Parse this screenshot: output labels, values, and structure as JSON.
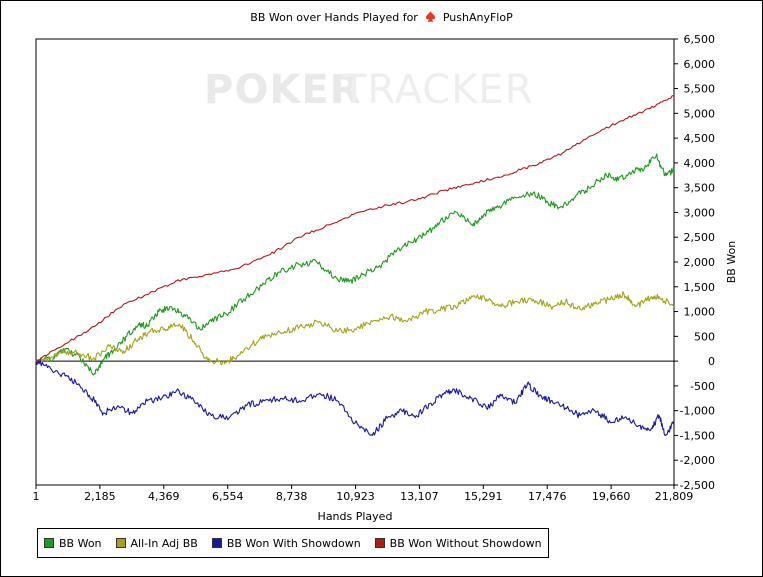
{
  "chart_data": {
    "type": "line",
    "title": "BB Won over Hands Played for PushAnyFloP",
    "title_prefix": "BB Won over Hands Played for",
    "player_name": "PushAnyFloP",
    "player_icon": "spade-icon",
    "watermark": {
      "bold": "POKER",
      "light": "TRACKER"
    },
    "xlabel": "Hands Played",
    "ylabel": "BB Won",
    "xlim": [
      1,
      21809
    ],
    "ylim": [
      -2500,
      6500
    ],
    "x_ticks": [
      1,
      2185,
      4369,
      6554,
      8738,
      10923,
      13107,
      15291,
      17476,
      19660,
      21809
    ],
    "x_tick_labels": [
      "1",
      "2,185",
      "4,369",
      "6,554",
      "8,738",
      "10,923",
      "13,107",
      "15,291",
      "17,476",
      "19,660",
      "21,809"
    ],
    "y_ticks": [
      -2500,
      -2000,
      -1500,
      -1000,
      -500,
      0,
      500,
      1000,
      1500,
      2000,
      2500,
      3000,
      3500,
      4000,
      4500,
      5000,
      5500,
      6000,
      6500
    ],
    "y_tick_labels": [
      "-2,500",
      "-2,000",
      "-1,500",
      "-1,000",
      "-500",
      "0",
      "500",
      "1,000",
      "1,500",
      "2,000",
      "2,500",
      "3,000",
      "3,500",
      "4,000",
      "4,500",
      "5,000",
      "5,500",
      "6,000",
      "6,500"
    ],
    "grid": false,
    "legend_position": "bottom-left",
    "series": [
      {
        "name": "BB Won",
        "color": "#1e9a1e",
        "x": [
          1,
          600,
          1000,
          1500,
          2000,
          2300,
          2700,
          3100,
          3500,
          3800,
          4200,
          4600,
          5100,
          5600,
          6000,
          6500,
          7200,
          7800,
          8300,
          9000,
          9600,
          10200,
          10700,
          11200,
          11700,
          12300,
          12800,
          13300,
          13800,
          14400,
          14900,
          15300,
          15800,
          16400,
          17000,
          17500,
          17900,
          18400,
          18900,
          19500,
          19900,
          20400,
          20800,
          21200,
          21500,
          21809
        ],
        "y": [
          0,
          60,
          250,
          80,
          -250,
          30,
          250,
          500,
          750,
          700,
          1000,
          1100,
          900,
          650,
          800,
          950,
          1300,
          1550,
          1800,
          1950,
          2000,
          1700,
          1600,
          1750,
          1900,
          2200,
          2400,
          2550,
          2800,
          3000,
          2750,
          2950,
          3100,
          3300,
          3400,
          3200,
          3100,
          3300,
          3500,
          3750,
          3650,
          3850,
          3900,
          4150,
          3750,
          3850
        ]
      },
      {
        "name": "All-In Adj BB",
        "color": "#a3a31a",
        "x": [
          1,
          500,
          1000,
          1500,
          2000,
          2500,
          3000,
          3500,
          3900,
          4400,
          4900,
          5400,
          5800,
          6300,
          6800,
          7400,
          7900,
          8500,
          9100,
          9700,
          10300,
          10900,
          11500,
          12100,
          12700,
          13300,
          13900,
          14500,
          15000,
          15400,
          15900,
          16400,
          17000,
          17600,
          18100,
          18600,
          19100,
          19600,
          20100,
          20500,
          20900,
          21300,
          21809
        ],
        "y": [
          0,
          50,
          200,
          150,
          50,
          300,
          200,
          450,
          600,
          650,
          750,
          400,
          50,
          -20,
          50,
          350,
          500,
          600,
          700,
          800,
          600,
          650,
          800,
          900,
          800,
          1000,
          1050,
          1150,
          1300,
          1250,
          1100,
          1200,
          1250,
          1100,
          1200,
          1050,
          1150,
          1250,
          1350,
          1100,
          1250,
          1300,
          1100
        ]
      },
      {
        "name": "BB Won With Showdown",
        "color": "#1818a0",
        "x": [
          1,
          500,
          1000,
          1500,
          2000,
          2300,
          2800,
          3300,
          3800,
          4300,
          4800,
          5400,
          6000,
          6600,
          7200,
          7800,
          8400,
          9000,
          9700,
          10300,
          10900,
          11500,
          12000,
          12500,
          13000,
          13500,
          14000,
          14400,
          14900,
          15400,
          15900,
          16400,
          16800,
          17200,
          17600,
          18100,
          18600,
          19100,
          19600,
          20100,
          20600,
          21000,
          21300,
          21500,
          21809
        ],
        "y": [
          0,
          -150,
          -300,
          -500,
          -800,
          -1050,
          -900,
          -1050,
          -800,
          -750,
          -600,
          -800,
          -1100,
          -1150,
          -900,
          -800,
          -750,
          -800,
          -650,
          -800,
          -1250,
          -1500,
          -1150,
          -1000,
          -1100,
          -850,
          -650,
          -600,
          -750,
          -950,
          -700,
          -850,
          -450,
          -700,
          -800,
          -950,
          -1100,
          -1000,
          -1200,
          -1150,
          -1300,
          -1400,
          -1100,
          -1500,
          -1250
        ]
      },
      {
        "name": "BB Won Without Showdown",
        "color": "#b11a1a",
        "x": [
          1,
          1000,
          2000,
          3000,
          4000,
          5000,
          6000,
          7000,
          8000,
          9000,
          10000,
          11000,
          12000,
          13000,
          14000,
          15000,
          16000,
          17000,
          18000,
          19000,
          20000,
          21000,
          21809
        ],
        "y": [
          0,
          350,
          700,
          1150,
          1400,
          1650,
          1750,
          1900,
          2150,
          2500,
          2750,
          3000,
          3150,
          3250,
          3450,
          3600,
          3750,
          3950,
          4200,
          4550,
          4850,
          5100,
          5350
        ]
      }
    ]
  }
}
